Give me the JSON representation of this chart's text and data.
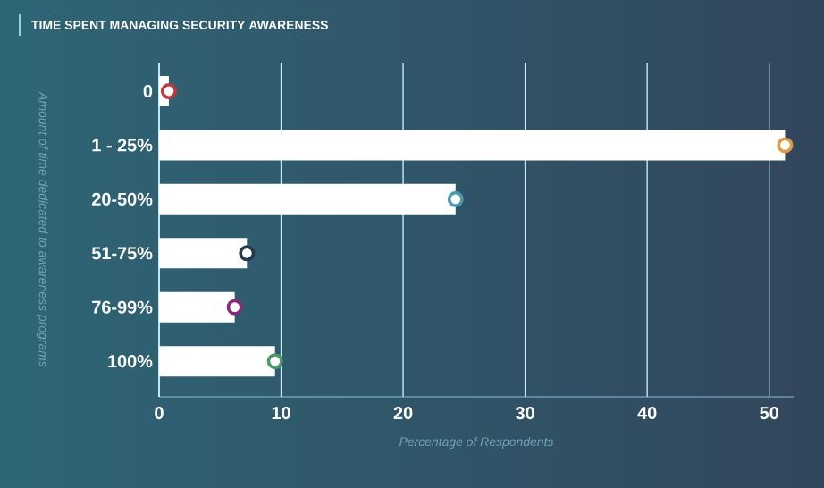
{
  "chart_data": {
    "type": "bar",
    "orientation": "horizontal",
    "title": "TIME SPENT MANAGING SECURITY AWARENESS",
    "xlabel": "Percentage of Respondents",
    "ylabel": "Amount of time dedicated to awareness programs",
    "categories": [
      "0",
      "1 - 25%",
      "20-50%",
      "51-75%",
      "76-99%",
      "100%"
    ],
    "values": [
      0.8,
      51.3,
      24.3,
      7.2,
      6.2,
      9.5
    ],
    "color": "#ffffff",
    "xlim": [
      0,
      52
    ],
    "xticks": [
      0,
      10,
      20,
      30,
      40,
      50
    ],
    "grid": "x"
  }
}
